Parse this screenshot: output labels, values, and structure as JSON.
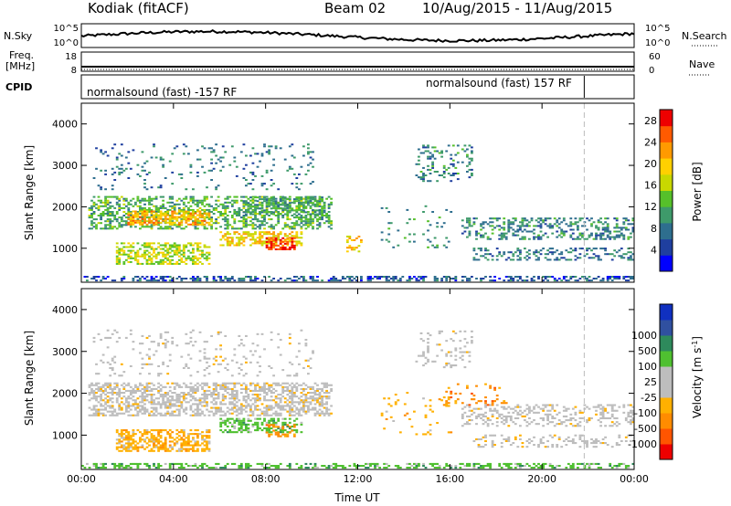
{
  "header": {
    "title": "Kodiak (fitACF)",
    "beam": "Beam 02",
    "date_range": "10/Aug/2015 - 11/Aug/2015"
  },
  "panels": {
    "nsky": {
      "left_label": "N.Sky",
      "right_label": "N.Search",
      "left_ticks": [
        "10^5",
        "10^0"
      ],
      "right_ticks": [
        "10^5",
        "10^0"
      ]
    },
    "freq": {
      "left_label_1": "Freq.",
      "left_label_2": "[MHz]",
      "left_ticks": [
        "18",
        "8"
      ],
      "right_ticks": [
        "60",
        "0"
      ],
      "right_label": "Nave"
    },
    "cpid": {
      "label": "CPID",
      "mode_1": "normalsound (fast) -157 RF",
      "mode_2": "normalsound (fast) 157 RF",
      "mode_change_time": "21:50"
    }
  },
  "colors": {
    "power": [
      "#0000ff",
      "#1f3f9f",
      "#2e6e8e",
      "#3e9a6a",
      "#56c02a",
      "#c8d800",
      "#ffd000",
      "#ff9a00",
      "#ff5a00",
      "#ee0000"
    ],
    "velocity": [
      "#ee0000",
      "#ff5500",
      "#ff8c00",
      "#ffb000",
      "#bdbdbd",
      "#bdbdbd",
      "#4fc030",
      "#2e8a5c",
      "#3050a0",
      "#1030c0"
    ]
  },
  "chart_data": [
    {
      "type": "heatmap",
      "name": "power",
      "xlabel": "",
      "ylabel": "Slant Range [km]",
      "x_ticks": [
        "00:00",
        "04:00",
        "08:00",
        "12:00",
        "16:00",
        "20:00",
        "00:00"
      ],
      "xlim_hours": [
        0,
        24
      ],
      "ylim": [
        180,
        4500
      ],
      "y_ticks": [
        1000,
        2000,
        3000,
        4000
      ],
      "colorbar": {
        "label": "Power [dB]",
        "range": [
          0,
          30
        ],
        "ticks": [
          4,
          8,
          12,
          16,
          20,
          24,
          28
        ]
      },
      "echo_regions": [
        {
          "t_start": 0.0,
          "t_end": 24.0,
          "r_min": 200,
          "r_max": 330,
          "power_db": 6,
          "density": 0.45
        },
        {
          "t_start": 0.3,
          "t_end": 10.8,
          "r_min": 1450,
          "r_max": 2250,
          "power_db": 12,
          "density": 0.45
        },
        {
          "t_start": 2.0,
          "t_end": 5.5,
          "r_min": 1550,
          "r_max": 1900,
          "power_db": 21,
          "density": 0.6
        },
        {
          "t_start": 7.0,
          "t_end": 10.5,
          "r_min": 1800,
          "r_max": 2250,
          "power_db": 11,
          "density": 0.5
        },
        {
          "t_start": 1.5,
          "t_end": 5.5,
          "r_min": 600,
          "r_max": 1100,
          "power_db": 16,
          "density": 0.5
        },
        {
          "t_start": 6.0,
          "t_end": 9.5,
          "r_min": 1050,
          "r_max": 1400,
          "power_db": 19,
          "density": 0.55
        },
        {
          "t_start": 8.0,
          "t_end": 9.2,
          "r_min": 950,
          "r_max": 1250,
          "power_db": 27,
          "density": 0.6
        },
        {
          "t_start": 0.5,
          "t_end": 10.0,
          "r_min": 2400,
          "r_max": 3500,
          "power_db": 8,
          "density": 0.08
        },
        {
          "t_start": 14.5,
          "t_end": 17.0,
          "r_min": 2600,
          "r_max": 3500,
          "power_db": 9,
          "density": 0.2
        },
        {
          "t_start": 16.5,
          "t_end": 24.0,
          "r_min": 1200,
          "r_max": 1700,
          "power_db": 9,
          "density": 0.35
        },
        {
          "t_start": 17.0,
          "t_end": 24.0,
          "r_min": 700,
          "r_max": 1000,
          "power_db": 8,
          "density": 0.3
        },
        {
          "t_start": 11.5,
          "t_end": 12.2,
          "r_min": 900,
          "r_max": 1300,
          "power_db": 20,
          "density": 0.3
        },
        {
          "t_start": 13.0,
          "t_end": 16.0,
          "r_min": 1000,
          "r_max": 2000,
          "power_db": 10,
          "density": 0.06
        }
      ]
    },
    {
      "type": "heatmap",
      "name": "velocity",
      "xlabel": "Time UT",
      "ylabel": "Slant Range [km]",
      "x_ticks": [
        "00:00",
        "04:00",
        "08:00",
        "12:00",
        "16:00",
        "20:00",
        "00:00"
      ],
      "xlim_hours": [
        0,
        24
      ],
      "ylim": [
        180,
        4500
      ],
      "y_ticks": [
        1000,
        2000,
        3000,
        4000
      ],
      "colorbar": {
        "label": "Velocity [m s",
        "label_sup": "-1",
        "label_end": "]",
        "levels": [
          "-1000",
          "-500",
          "-100",
          "-25",
          "25",
          "100",
          "500",
          "1000"
        ]
      },
      "echo_regions": [
        {
          "t_start": 0.0,
          "t_end": 24.0,
          "r_min": 200,
          "r_max": 330,
          "velocity_class": 6,
          "density": 0.45
        },
        {
          "t_start": 0.3,
          "t_end": 10.8,
          "r_min": 1450,
          "r_max": 2250,
          "velocity_class": 4,
          "density": 0.5
        },
        {
          "t_start": 1.5,
          "t_end": 5.5,
          "r_min": 600,
          "r_max": 1100,
          "velocity_class": 3,
          "density": 0.55
        },
        {
          "t_start": 6.0,
          "t_end": 9.5,
          "r_min": 1050,
          "r_max": 1400,
          "velocity_class": 6,
          "density": 0.5
        },
        {
          "t_start": 8.0,
          "t_end": 9.2,
          "r_min": 950,
          "r_max": 1250,
          "velocity_class": 2,
          "density": 0.4
        },
        {
          "t_start": 0.5,
          "t_end": 10.0,
          "r_min": 2400,
          "r_max": 3500,
          "velocity_class": 4,
          "density": 0.08
        },
        {
          "t_start": 14.5,
          "t_end": 17.0,
          "r_min": 2600,
          "r_max": 3500,
          "velocity_class": 4,
          "density": 0.15
        },
        {
          "t_start": 16.5,
          "t_end": 24.0,
          "r_min": 1200,
          "r_max": 1700,
          "velocity_class": 4,
          "density": 0.3
        },
        {
          "t_start": 17.0,
          "t_end": 24.0,
          "r_min": 700,
          "r_max": 1000,
          "velocity_class": 4,
          "density": 0.25
        },
        {
          "t_start": 15.5,
          "t_end": 18.5,
          "r_min": 1700,
          "r_max": 2200,
          "velocity_class": 2,
          "density": 0.12
        },
        {
          "t_start": 13.0,
          "t_end": 16.0,
          "r_min": 1000,
          "r_max": 2000,
          "velocity_class": 3,
          "density": 0.05
        }
      ]
    }
  ]
}
